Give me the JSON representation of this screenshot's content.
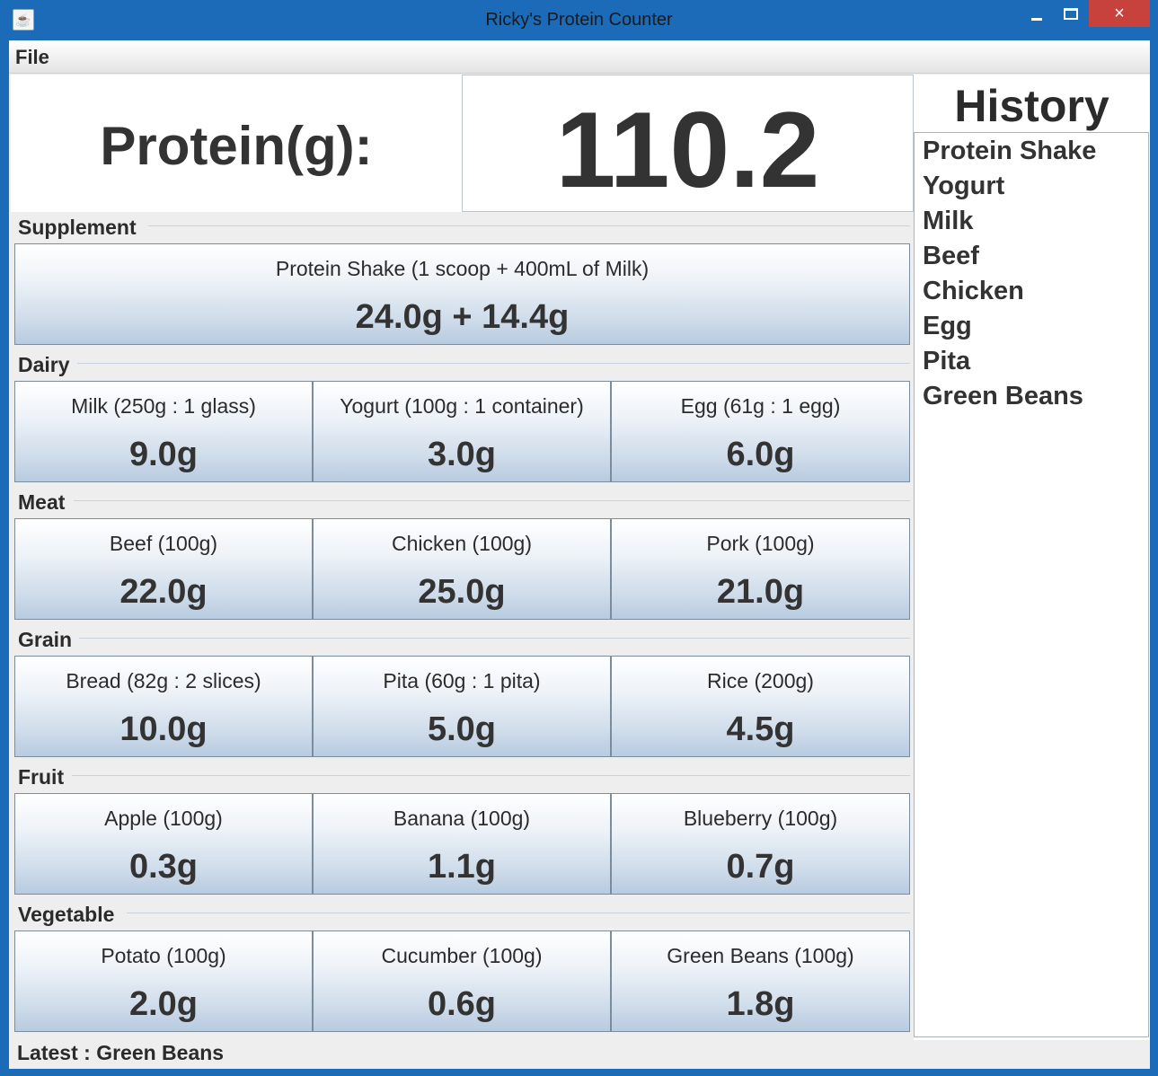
{
  "window": {
    "title": "Ricky's Protein Counter",
    "app_icon": "java-cup-icon",
    "controls": {
      "minimize": "minimize-icon",
      "maximize": "maximize-icon",
      "close": "×"
    }
  },
  "menu": {
    "file": "File"
  },
  "protein": {
    "label": "Protein(g):",
    "value": "110.2"
  },
  "history": {
    "title": "History",
    "items": [
      "Protein Shake",
      "Yogurt",
      "Milk",
      "Beef",
      "Chicken",
      "Egg",
      "Pita",
      "Green Beans"
    ]
  },
  "groups": {
    "supplement": {
      "label": "Supplement",
      "items": [
        {
          "name": "Protein Shake (1 scoop + 400mL of Milk)",
          "value": "24.0g + 14.4g"
        }
      ]
    },
    "dairy": {
      "label": "Dairy",
      "items": [
        {
          "name": "Milk (250g : 1 glass)",
          "value": "9.0g"
        },
        {
          "name": "Yogurt (100g : 1 container)",
          "value": "3.0g"
        },
        {
          "name": "Egg (61g : 1 egg)",
          "value": "6.0g"
        }
      ]
    },
    "meat": {
      "label": "Meat",
      "items": [
        {
          "name": "Beef (100g)",
          "value": "22.0g"
        },
        {
          "name": "Chicken (100g)",
          "value": "25.0g"
        },
        {
          "name": "Pork (100g)",
          "value": "21.0g"
        }
      ]
    },
    "grain": {
      "label": "Grain",
      "items": [
        {
          "name": "Bread (82g : 2 slices)",
          "value": "10.0g"
        },
        {
          "name": "Pita (60g : 1 pita)",
          "value": "5.0g"
        },
        {
          "name": "Rice (200g)",
          "value": "4.5g"
        }
      ]
    },
    "fruit": {
      "label": "Fruit",
      "items": [
        {
          "name": "Apple (100g)",
          "value": "0.3g"
        },
        {
          "name": "Banana (100g)",
          "value": "1.1g"
        },
        {
          "name": "Blueberry (100g)",
          "value": "0.7g"
        }
      ]
    },
    "vegetable": {
      "label": "Vegetable",
      "items": [
        {
          "name": "Potato (100g)",
          "value": "2.0g"
        },
        {
          "name": "Cucumber (100g)",
          "value": "0.6g"
        },
        {
          "name": "Green Beans (100g)",
          "value": "1.8g"
        }
      ]
    }
  },
  "status": {
    "prefix": "Latest : ",
    "value": "Green Beans"
  }
}
